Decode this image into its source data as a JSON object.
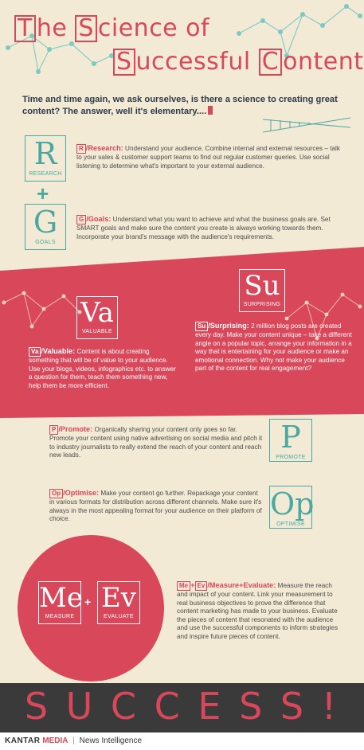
{
  "title": {
    "line1": {
      "T": "T",
      "rest1": "he ",
      "S": "S",
      "rest2": "cience of"
    },
    "line2": {
      "S": "S",
      "rest1": "uccessful ",
      "C": "C",
      "rest2": "ontent"
    }
  },
  "intro": "Time and time again, we ask ourselves, is there a science to creating great content? The answer, well it's elementary....",
  "research": {
    "symbol": "R",
    "label": "RESEARCH",
    "tag": "R",
    "heading": "/Research:",
    "text": "Understand your audience. Combine internal and external resources – talk to your sales & customer support teams to find out regular customer queries. Use social listening to determine what's important to your external audience."
  },
  "plus": "+",
  "goals": {
    "symbol": "G",
    "label": "GOALS",
    "tag": "G",
    "heading": "/Goals:",
    "text": "Understand what you want to achieve and what the business goals are. Set SMART goals and make sure the content you create is always working towards them. Incorporate your brand's message with the audience's requirements."
  },
  "surprising": {
    "symbol": "Su",
    "label": "SURPRISING",
    "tag": "Su",
    "heading": "/Surprising:",
    "text": "2 million blog posts are created every day. Make your content unique – take a different angle on a popular topic, arrange your information in a way that is entertaining for your audience or make an emotional connection. Why not make your audience part of the content for real engagement?"
  },
  "valuable": {
    "symbol": "Va",
    "label": "VALUABLE",
    "tag": "Va",
    "heading": "/Valuable:",
    "text": "Content is about creating something that will be of value to your audience. Use your blogs, videos, infographics etc. to answer a question for them, teach them something new, help them be more efficient."
  },
  "promote": {
    "symbol": "P",
    "label": "PROMOTE",
    "tag": "P",
    "heading": "/Promote:",
    "text": "Organically sharing your content only goes so far. Promote your content using native advertising on social media and pitch it to industry journalists to really extend the reach of your content and reach new leads."
  },
  "optimise": {
    "symbol": "Op",
    "label": "OPTIMISE",
    "tag": "Op",
    "heading": "/Optimise:",
    "text": "Make your content go further. Repackage your content in various formats for distribution across different channels. Make sure it's always in the most appealing format for your audience on their platform of choice."
  },
  "measure": {
    "symbol": "Me",
    "label": "MEASURE",
    "tag": "Me",
    "plus": "+",
    "evaluate_symbol": "Ev",
    "evaluate_label": "EVALUATE",
    "evaluate_tag": "Ev",
    "heading": "/Measure+Evaluate:",
    "text": "Measure the reach and impact of your content. Link your measurement to real business objectives to prove the difference that content marketing has made to your business. Evaluate the pieces of content that resonated with the audience and use the successful components to inform strategies and inspire future pieces of content."
  },
  "success": "S U C C E S S !",
  "footer": {
    "brand": "KANTAR",
    "brand2": "MEDIA",
    "separator": "|",
    "division": "News Intelligence"
  },
  "colors": {
    "accent": "#d9475a",
    "teal": "#4aa8a0",
    "background": "#f3ead5",
    "footer": "#3a3a3a"
  }
}
